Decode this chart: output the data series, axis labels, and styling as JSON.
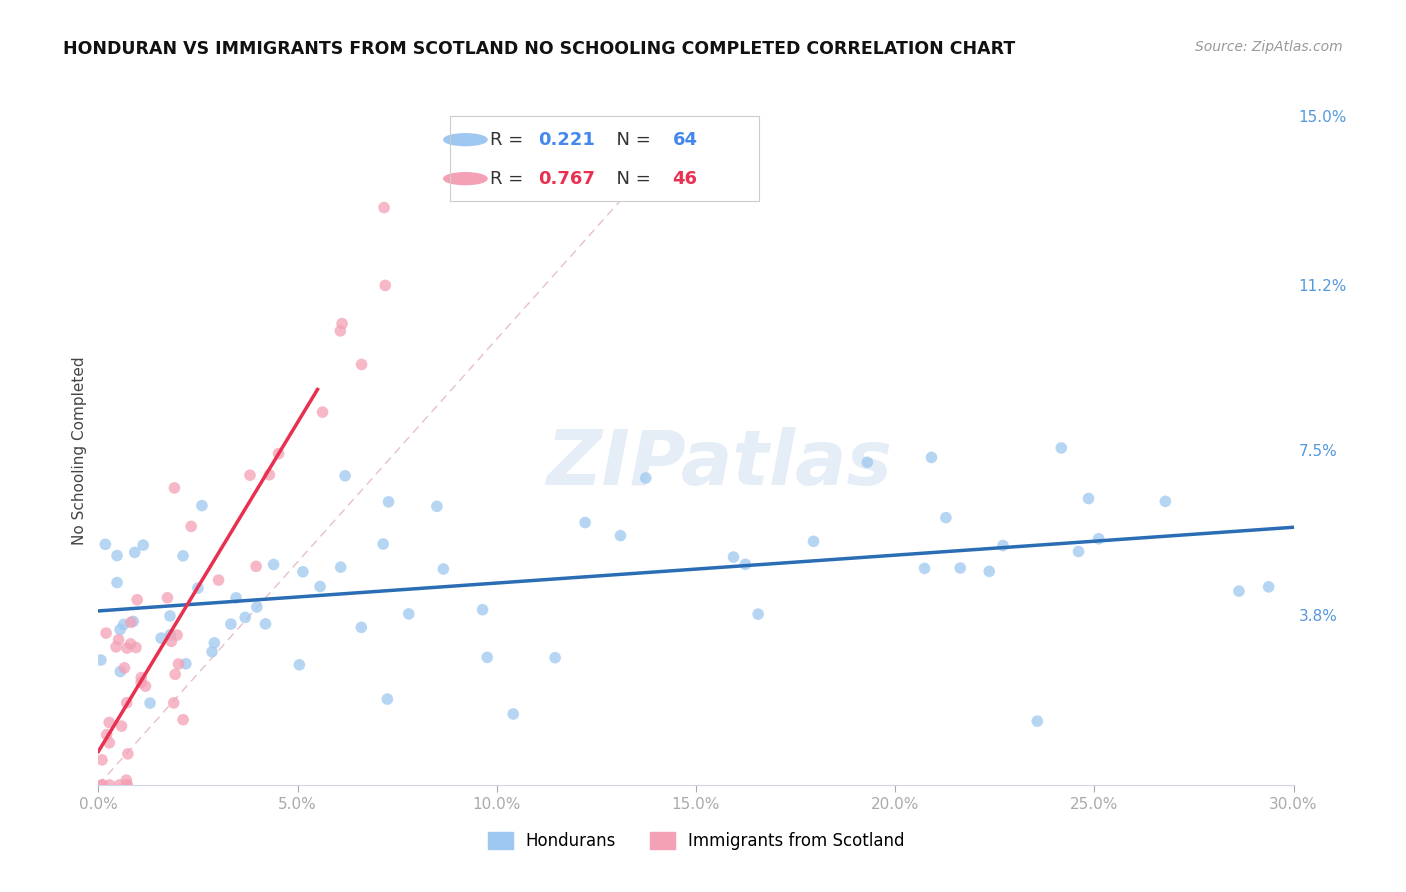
{
  "title": "HONDURAN VS IMMIGRANTS FROM SCOTLAND NO SCHOOLING COMPLETED CORRELATION CHART",
  "source": "Source: ZipAtlas.com",
  "ylabel": "No Schooling Completed",
  "xlim": [
    0.0,
    0.3
  ],
  "ylim": [
    0.0,
    0.15
  ],
  "xticks": [
    0.0,
    0.05,
    0.1,
    0.15,
    0.2,
    0.25,
    0.3
  ],
  "xtick_labels": [
    "0.0%",
    "5.0%",
    "10.0%",
    "15.0%",
    "20.0%",
    "25.0%",
    "30.0%"
  ],
  "yticks_right": [
    0.038,
    0.075,
    0.112,
    0.15
  ],
  "ytick_labels_right": [
    "3.8%",
    "7.5%",
    "11.2%",
    "15.0%"
  ],
  "hondurans_color": "#9ec8f0",
  "scotland_color": "#f4a0b5",
  "trend_hondurans_color": "#2b6db5",
  "trend_scotland_color": "#e83050",
  "R_hondurans": 0.221,
  "N_hondurans": 64,
  "R_scotland": 0.767,
  "N_scotland": 46,
  "background_color": "#ffffff",
  "grid_color": "#d0d5e8",
  "watermark_text": "ZIPatlas",
  "legend_hondurans_label": "Hondurans",
  "legend_scotland_label": "Immigrants from Scotland",
  "R_color_hondurans": "#4488ee",
  "R_color_scotland": "#e83050",
  "diag_color": "#e0b0c0",
  "scatter_size": 70,
  "scatter_alpha": 0.75
}
